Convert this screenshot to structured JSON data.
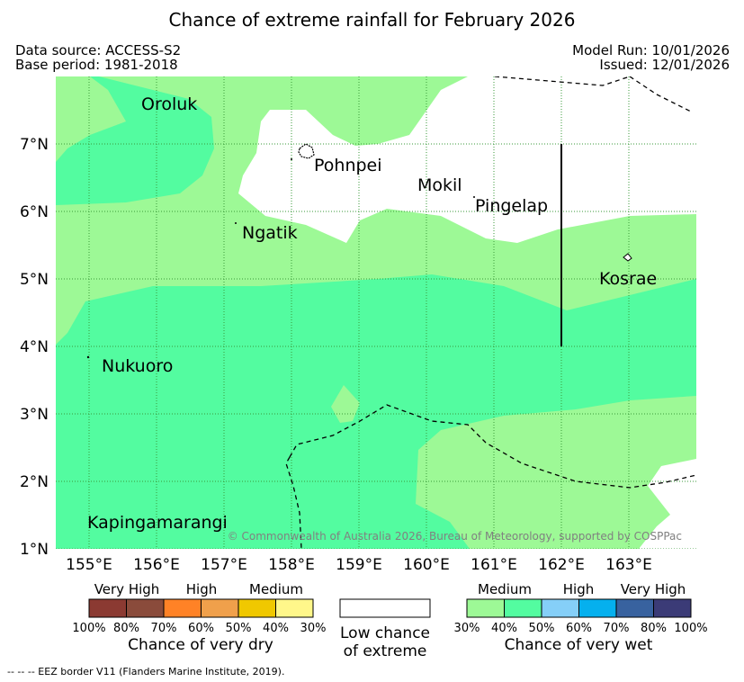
{
  "title": "Chance of extreme rainfall for February 2026",
  "header": {
    "data_source": "Data source: ACCESS-S2",
    "base_period": "Base period: 1981-2018",
    "model_run": "Model Run: 10/01/2026",
    "issued": "Issued: 12/01/2026"
  },
  "map": {
    "lat_labels": [
      "7°N",
      "6°N",
      "5°N",
      "4°N",
      "3°N",
      "2°N",
      "1°N"
    ],
    "lon_labels": [
      "155°E",
      "156°E",
      "157°E",
      "158°E",
      "159°E",
      "160°E",
      "161°E",
      "162°E",
      "163°E"
    ],
    "places": {
      "oroluk": "Oroluk",
      "pohnpei": "Pohnpei",
      "mokil": "Mokil",
      "pingelap": "Pingelap",
      "ngatik": "Ngatik",
      "kosrae": "Kosrae",
      "nukuoro": "Nukuoro",
      "kapingamarangi": "Kapingamarangi"
    },
    "copyright": "© Commonwealth of Australia 2026, Bureau of Meteorology, supported by COSPPac",
    "colors": {
      "medium_wet": "#9df996",
      "wet_40": "#53fca0",
      "low": "#ffffff",
      "grid": "#3a9a3a",
      "border": "#000000"
    }
  },
  "legend": {
    "dry": {
      "categories": [
        "Very High",
        "High",
        "Medium"
      ],
      "ticks": [
        "100%",
        "80%",
        "70%",
        "60%",
        "50%",
        "40%",
        "30%"
      ],
      "colors": [
        "#8b3a32",
        "#8a4b3b",
        "#ff8226",
        "#f0a04b",
        "#f0c800",
        "#fff78a"
      ],
      "label": "Chance of very dry"
    },
    "low": {
      "line1": "Low chance",
      "line2": "of extreme"
    },
    "wet": {
      "categories": [
        "Medium",
        "High",
        "Very High"
      ],
      "ticks": [
        "30%",
        "40%",
        "50%",
        "60%",
        "70%",
        "80%",
        "100%"
      ],
      "colors": [
        "#9df996",
        "#53fca0",
        "#85cff8",
        "#05b0ee",
        "#38629f",
        "#3b3b77"
      ],
      "label": "Chance of very wet"
    }
  },
  "footnote": "--  --  -- EEZ border V11 (Flanders Marine Institute, 2019)."
}
